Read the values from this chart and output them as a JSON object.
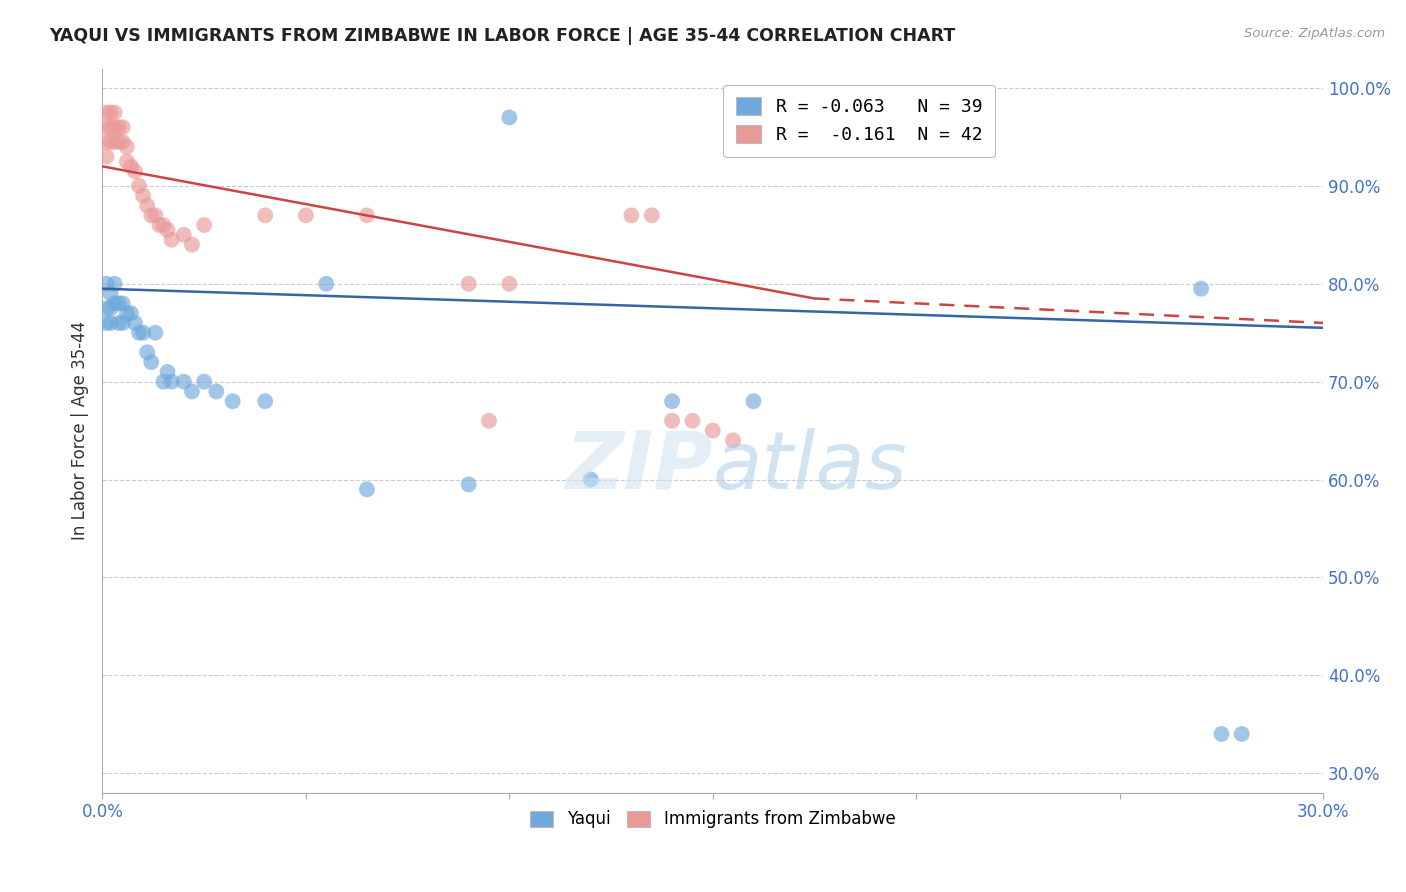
{
  "title": "YAQUI VS IMMIGRANTS FROM ZIMBABWE IN LABOR FORCE | AGE 35-44 CORRELATION CHART",
  "source": "Source: ZipAtlas.com",
  "ylabel": "In Labor Force | Age 35-44",
  "xlim": [
    0.0,
    0.3
  ],
  "ylim": [
    0.28,
    1.02
  ],
  "xticks": [
    0.0,
    0.05,
    0.1,
    0.15,
    0.2,
    0.25,
    0.3
  ],
  "xtick_labels": [
    "0.0%",
    "",
    "",
    "",
    "",
    "",
    "30.0%"
  ],
  "yticks": [
    0.3,
    0.4,
    0.5,
    0.6,
    0.7,
    0.8,
    0.9,
    1.0
  ],
  "ytick_labels": [
    "30.0%",
    "40.0%",
    "50.0%",
    "60.0%",
    "70.0%",
    "80.0%",
    "90.0%",
    "100.0%"
  ],
  "blue_color": "#6fa8dc",
  "pink_color": "#ea9999",
  "blue_line_color": "#3465a4",
  "pink_line_color": "#cc4444",
  "legend_blue_label": "R = -0.063   N = 39",
  "legend_pink_label": "R =  -0.161  N = 42",
  "legend_label_yaqui": "Yaqui",
  "legend_label_zim": "Immigrants from Zimbabwe",
  "yaqui_x": [
    0.001,
    0.001,
    0.001,
    0.002,
    0.002,
    0.002,
    0.003,
    0.003,
    0.004,
    0.004,
    0.005,
    0.005,
    0.006,
    0.007,
    0.008,
    0.009,
    0.01,
    0.011,
    0.012,
    0.013,
    0.015,
    0.016,
    0.017,
    0.02,
    0.022,
    0.025,
    0.028,
    0.032,
    0.04,
    0.065,
    0.09,
    0.1,
    0.12,
    0.14,
    0.16,
    0.055,
    0.27,
    0.275,
    0.28
  ],
  "yaqui_y": [
    0.8,
    0.775,
    0.76,
    0.79,
    0.775,
    0.76,
    0.8,
    0.78,
    0.78,
    0.76,
    0.78,
    0.76,
    0.77,
    0.77,
    0.76,
    0.75,
    0.75,
    0.73,
    0.72,
    0.75,
    0.7,
    0.71,
    0.7,
    0.7,
    0.69,
    0.7,
    0.69,
    0.68,
    0.68,
    0.59,
    0.595,
    0.97,
    0.6,
    0.68,
    0.68,
    0.8,
    0.795,
    0.34,
    0.34
  ],
  "zim_x": [
    0.001,
    0.001,
    0.001,
    0.001,
    0.002,
    0.002,
    0.002,
    0.003,
    0.003,
    0.003,
    0.004,
    0.004,
    0.005,
    0.005,
    0.006,
    0.006,
    0.007,
    0.008,
    0.009,
    0.01,
    0.011,
    0.012,
    0.013,
    0.014,
    0.015,
    0.016,
    0.017,
    0.02,
    0.022,
    0.025,
    0.04,
    0.05,
    0.065,
    0.09,
    0.095,
    0.1,
    0.13,
    0.135,
    0.14,
    0.145,
    0.15,
    0.155
  ],
  "zim_y": [
    0.975,
    0.96,
    0.945,
    0.93,
    0.975,
    0.96,
    0.945,
    0.975,
    0.96,
    0.945,
    0.96,
    0.945,
    0.96,
    0.945,
    0.94,
    0.925,
    0.92,
    0.915,
    0.9,
    0.89,
    0.88,
    0.87,
    0.87,
    0.86,
    0.86,
    0.855,
    0.845,
    0.85,
    0.84,
    0.86,
    0.87,
    0.87,
    0.87,
    0.8,
    0.66,
    0.8,
    0.87,
    0.87,
    0.66,
    0.66,
    0.65,
    0.64
  ]
}
